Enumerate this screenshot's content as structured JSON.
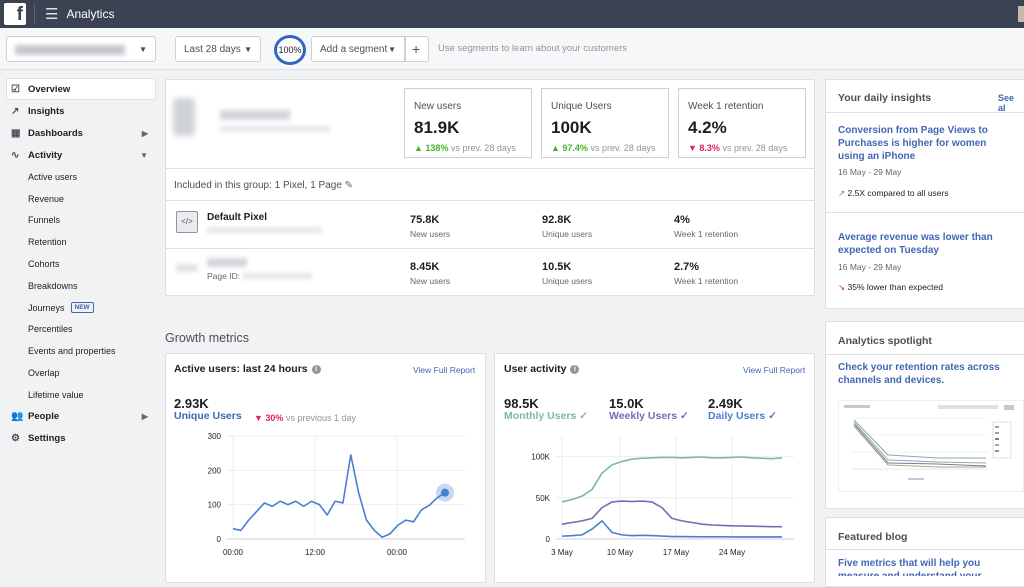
{
  "app": {
    "title": "Analytics"
  },
  "filters": {
    "date_range": "Last 28 days",
    "zoom": "100%",
    "add_segment": "Add a segment",
    "add_button": "+",
    "segment_hint": "Use segments to learn about your customers"
  },
  "sidebar": {
    "overview": "Overview",
    "insights": "Insights",
    "dashboards": "Dashboards",
    "activity": "Activity",
    "activity_items": [
      "Active users",
      "Revenue",
      "Funnels",
      "Retention",
      "Cohorts",
      "Breakdowns",
      "Journeys",
      "Percentiles",
      "Events and properties",
      "Overlap",
      "Lifetime value"
    ],
    "new_badge": "NEW",
    "people": "People",
    "settings": "Settings"
  },
  "summary": {
    "new_users": {
      "label": "New users",
      "value": "81.9K",
      "change": "138%",
      "direction": "up",
      "vs": "vs prev. 28 days"
    },
    "unique_users": {
      "label": "Unique Users",
      "value": "100K",
      "change": "97.4%",
      "direction": "up",
      "vs": "vs prev. 28 days"
    },
    "retention": {
      "label": "Week 1 retention",
      "value": "4.2%",
      "change": "8.3%",
      "direction": "down",
      "vs": "vs prev. 28 days"
    }
  },
  "group": {
    "header": "Included in this group: 1 Pixel, 1 Page",
    "rows": [
      {
        "name": "Default Pixel",
        "sub": "",
        "new_users": "75.8K",
        "unique_users": "92.8K",
        "retention": "4%"
      },
      {
        "name": "",
        "sub": "Page ID:",
        "new_users": "8.45K",
        "unique_users": "10.5K",
        "retention": "2.7%"
      }
    ],
    "labels": {
      "new_users": "New users",
      "unique_users": "Unique users",
      "retention": "Week 1 retention"
    }
  },
  "growth": {
    "title": "Growth metrics",
    "active": {
      "title": "Active users: last 24 hours",
      "view": "View Full Report",
      "value": "2.93K",
      "label": "Unique Users",
      "change": "30%",
      "vs": "vs previous 1 day"
    },
    "activity": {
      "title": "User activity",
      "view": "View Full Report",
      "metrics": [
        {
          "value": "98.5K",
          "label": "Monthly Users"
        },
        {
          "value": "15.0K",
          "label": "Weekly Users"
        },
        {
          "value": "2.49K",
          "label": "Daily Users"
        }
      ]
    }
  },
  "insights": {
    "title": "Your daily insights",
    "see_all": "See al",
    "items": [
      {
        "text": "Conversion from Page Views to Purchases is higher for women using an iPhone",
        "date": "16 May - 29 May",
        "compare": "2.5X compared to all users"
      },
      {
        "text": "Average revenue was lower than expected on Tuesday",
        "date": "16 May - 29 May",
        "compare": "35% lower than expected"
      }
    ]
  },
  "spotlight": {
    "title": "Analytics spotlight",
    "text": "Check your retention rates across channels and devices."
  },
  "blog": {
    "title": "Featured blog",
    "text": "Five metrics that will help you measure and understand your"
  },
  "colors": {
    "accent": "#4267b2",
    "up": "#42b72a",
    "down": "#e0245e",
    "monthly": "#7fb89a",
    "weekly": "#7b68b6",
    "daily": "#4a7fd0"
  },
  "chart_data": [
    {
      "type": "line",
      "title": "Active users: last 24 hours",
      "x_ticks": [
        "00:00",
        "12:00",
        "00:00"
      ],
      "y_ticks": [
        "300",
        "200",
        "100",
        "0"
      ],
      "ylim": [
        0,
        300
      ],
      "series": [
        {
          "name": "Unique Users",
          "values": [
            30,
            25,
            55,
            80,
            105,
            95,
            110,
            100,
            110,
            95,
            110,
            100,
            70,
            110,
            105,
            245,
            135,
            55,
            25,
            5,
            15,
            40,
            55,
            50,
            85,
            98,
            120,
            135
          ]
        }
      ]
    },
    {
      "type": "line",
      "title": "User activity",
      "x_ticks": [
        "3 May",
        "10 May",
        "17 May",
        "24 May"
      ],
      "y_ticks": [
        "100K",
        "50K",
        "0"
      ],
      "ylim": [
        0,
        125000
      ],
      "series": [
        {
          "name": "Monthly Users",
          "values": [
            45000,
            48000,
            52000,
            60000,
            80000,
            90000,
            94000,
            97000,
            98000,
            98500,
            99000,
            99000,
            98500,
            99000,
            99500,
            98500,
            98500,
            99000,
            99500,
            98500,
            98000,
            97500,
            98500
          ]
        },
        {
          "name": "Weekly Users",
          "values": [
            18000,
            20000,
            22000,
            25000,
            38000,
            45000,
            46000,
            45500,
            46000,
            45000,
            38000,
            25000,
            22000,
            20000,
            18000,
            17000,
            16500,
            16000,
            15800,
            15500,
            15200,
            15000,
            15000
          ]
        },
        {
          "name": "Daily Users",
          "values": [
            3500,
            4000,
            5000,
            12000,
            22000,
            8000,
            5000,
            4000,
            4500,
            4200,
            3600,
            3000,
            2900,
            2800,
            2700,
            2600,
            2600,
            2550,
            2500,
            2500,
            2500,
            2490,
            2490
          ]
        }
      ]
    }
  ]
}
